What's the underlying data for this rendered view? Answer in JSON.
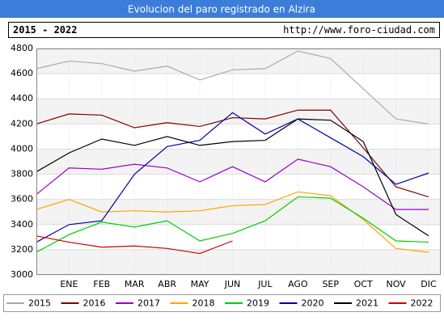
{
  "chart_data": {
    "type": "line",
    "title": "Evolucion del paro registrado en Alzira",
    "period": "2015 - 2022",
    "url": "http://www.foro-ciudad.com",
    "categories": [
      null,
      "ENE",
      "FEB",
      "MAR",
      "ABR",
      "MAY",
      "JUN",
      "JUL",
      "AGO",
      "SEP",
      "OCT",
      "NOV",
      "DIC"
    ],
    "ylim": [
      3000,
      4800
    ],
    "yticks": [
      3000,
      3200,
      3400,
      3600,
      3800,
      4000,
      4200,
      4400,
      4600,
      4800
    ],
    "grid": true,
    "legend": "bottom",
    "series": [
      {
        "name": "2015",
        "color": "#aaaaaa",
        "values": [
          4640,
          4700,
          4680,
          4620,
          4660,
          4550,
          4630,
          4640,
          4780,
          4720,
          4480,
          4240,
          4200
        ]
      },
      {
        "name": "2016",
        "color": "#800000",
        "values": [
          4200,
          4280,
          4270,
          4170,
          4210,
          4180,
          4250,
          4240,
          4310,
          4310,
          4010,
          3700,
          3620
        ]
      },
      {
        "name": "2017",
        "color": "#9900cc",
        "values": [
          3640,
          3850,
          3840,
          3880,
          3850,
          3740,
          3860,
          3740,
          3920,
          3860,
          3700,
          3520,
          3520
        ]
      },
      {
        "name": "2018",
        "color": "#ffa500",
        "values": [
          3520,
          3600,
          3500,
          3510,
          3500,
          3510,
          3550,
          3560,
          3660,
          3630,
          3440,
          3210,
          3180
        ]
      },
      {
        "name": "2019",
        "color": "#00cc00",
        "values": [
          3180,
          3320,
          3420,
          3380,
          3430,
          3270,
          3330,
          3430,
          3620,
          3610,
          3450,
          3270,
          3260
        ]
      },
      {
        "name": "2020",
        "color": "#0000aa",
        "values": [
          3260,
          3400,
          3430,
          3800,
          4020,
          4070,
          4290,
          4120,
          4240,
          4090,
          3940,
          3720,
          3810
        ]
      },
      {
        "name": "2021",
        "color": "#000000",
        "values": [
          3820,
          3970,
          4080,
          4030,
          4100,
          4030,
          4060,
          4070,
          4240,
          4230,
          4060,
          3480,
          3310
        ]
      },
      {
        "name": "2022",
        "color": "#cc0000",
        "values": [
          3310,
          3260,
          3220,
          3230,
          3210,
          3170,
          3270,
          null,
          null,
          null,
          null,
          null,
          null
        ]
      }
    ]
  }
}
